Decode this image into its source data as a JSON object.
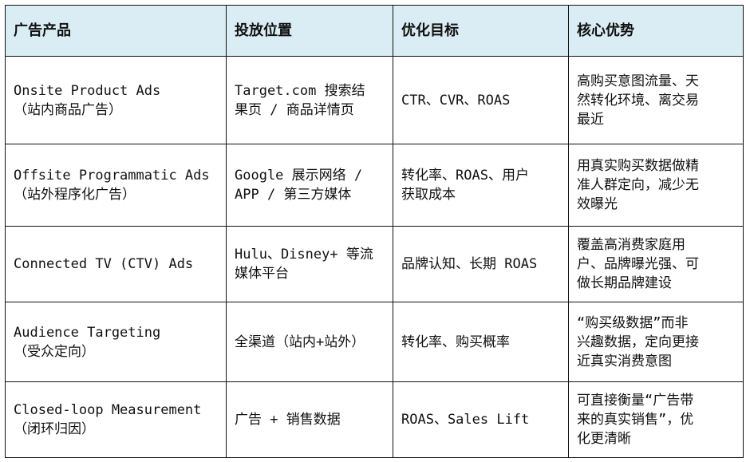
{
  "headers": [
    "广告产品",
    "投放位置",
    "优化目标",
    "核心优势"
  ],
  "header_bg": "#daedf4",
  "rows": [
    {
      "product": [
        "Onsite Product Ads",
        "（站内商品广告）"
      ],
      "placement": [
        "Target.com 搜索结",
        "果页 / 商品详情页"
      ],
      "goal": [
        "CTR、CVR、ROAS"
      ],
      "advantage": [
        "高购买意图流量、天",
        "然转化环境、离交易",
        "最近"
      ]
    },
    {
      "product": [
        "Offsite Programmatic Ads",
        "（站外程序化广告）"
      ],
      "placement": [
        "Google 展示网络 /",
        "APP / 第三方媒体"
      ],
      "goal": [
        "转化率、ROAS、用户",
        "获取成本"
      ],
      "advantage": [
        "用真实购买数据做精",
        "准人群定向，减少无",
        "效曝光"
      ]
    },
    {
      "product": [
        "Connected TV (CTV) Ads"
      ],
      "placement": [
        "Hulu、Disney+ 等流",
        "媒体平台"
      ],
      "goal": [
        "品牌认知、长期 ROAS"
      ],
      "advantage": [
        "覆盖高消费家庭用",
        "户、品牌曝光强、可",
        "做长期品牌建设"
      ]
    },
    {
      "product": [
        "Audience Targeting",
        "（受众定向）"
      ],
      "placement": [
        "全渠道（站内+站外）"
      ],
      "goal": [
        "转化率、购买概率"
      ],
      "advantage": [
        "“购买级数据”而非",
        "兴趣数据，定向更接",
        "近真实消费意图"
      ]
    },
    {
      "product": [
        "Closed-loop Measurement",
        "（闭环归因）"
      ],
      "placement": [
        "广告 + 销售数据"
      ],
      "goal": [
        "ROAS、Sales Lift"
      ],
      "advantage": [
        "可直接衡量“广告带",
        "来的真实销售”，优",
        "化更清晰"
      ]
    }
  ]
}
